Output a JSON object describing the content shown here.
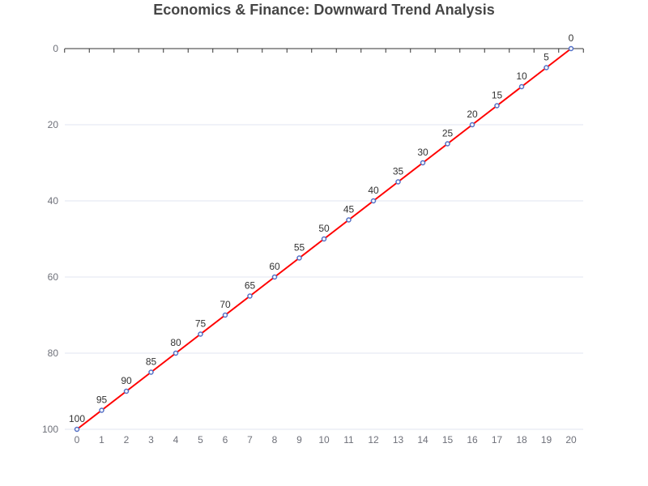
{
  "chart_data": {
    "type": "line",
    "title": "Economics & Finance: Downward Trend Analysis",
    "xlabel": "",
    "ylabel": "",
    "x": [
      0,
      1,
      2,
      3,
      4,
      5,
      6,
      7,
      8,
      9,
      10,
      11,
      12,
      13,
      14,
      15,
      16,
      17,
      18,
      19,
      20
    ],
    "series": [
      {
        "values": [
          100,
          95,
          90,
          85,
          80,
          75,
          70,
          65,
          60,
          55,
          50,
          45,
          40,
          35,
          30,
          25,
          20,
          15,
          10,
          5,
          0
        ]
      }
    ],
    "xlim": [
      0,
      20
    ],
    "ylim": [
      0,
      100
    ],
    "y_inverted": true,
    "x_axis_position": "top",
    "y_ticks": [
      0,
      20,
      40,
      60,
      80,
      100
    ],
    "grid": true,
    "data_labels": true,
    "colors": {
      "line": "#ff0000",
      "marker": "#5470c6",
      "grid": "#e0e6f1",
      "axis": "#333333"
    }
  }
}
